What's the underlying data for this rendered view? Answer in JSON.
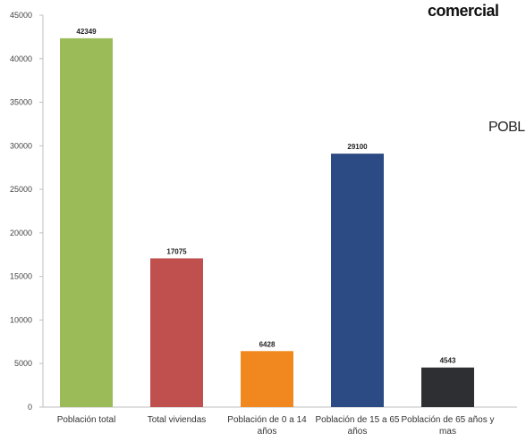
{
  "side": {
    "title": "comercial",
    "text": "POBL"
  },
  "colors": {
    "axis": "#bfbfbf",
    "bars": [
      "#9bbb59",
      "#c0504d",
      "#f0881f",
      "#2c4a83",
      "#2d2f33"
    ]
  },
  "chart_data": {
    "type": "bar",
    "categories": [
      [
        "Población total"
      ],
      [
        "Total viviendas"
      ],
      [
        "Población de 0 a 14",
        "años"
      ],
      [
        "Población de 15 a 65",
        "años"
      ],
      [
        "Población de 65 años y",
        "mas"
      ]
    ],
    "values": [
      42349,
      17075,
      6428,
      29100,
      4543
    ],
    "data_labels": [
      "42349",
      "17075",
      "6428",
      "29100",
      "4543"
    ],
    "yticks": [
      "0",
      "5000",
      "10000",
      "15000",
      "20000",
      "25000",
      "30000",
      "35000",
      "40000",
      "45000"
    ],
    "ylim": [
      0,
      45000
    ],
    "grid": false,
    "title": "",
    "xlabel": "",
    "ylabel": ""
  }
}
